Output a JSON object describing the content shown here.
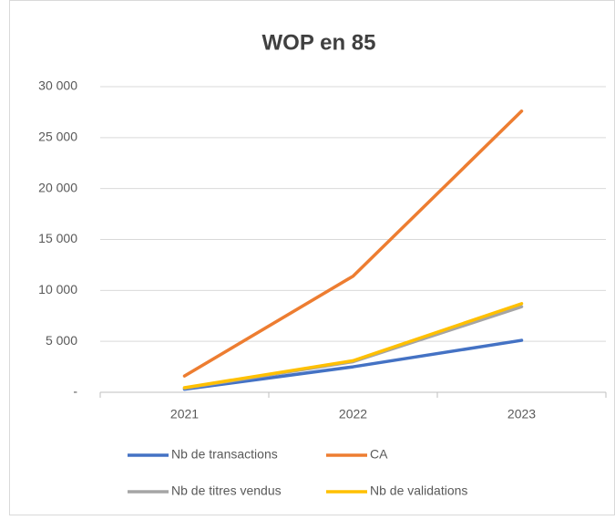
{
  "chart_data": {
    "type": "line",
    "title": "WOP en 85",
    "categories": [
      "2021",
      "2022",
      "2023"
    ],
    "series": [
      {
        "name": "Nb de transactions",
        "color": "#4472c4",
        "values": [
          300,
          2500,
          5100
        ]
      },
      {
        "name": "CA",
        "color": "#ed7d31",
        "values": [
          1600,
          11400,
          27600
        ]
      },
      {
        "name": "Nb de titres vendus",
        "color": "#a5a5a5",
        "values": [
          400,
          3000,
          8400
        ]
      },
      {
        "name": "Nb de validations",
        "color": "#ffc000",
        "values": [
          450,
          3100,
          8700
        ]
      }
    ],
    "ylim": [
      0,
      30000
    ],
    "yticks": [
      {
        "value": 0,
        "label": "-"
      },
      {
        "value": 5000,
        "label": "5 000"
      },
      {
        "value": 10000,
        "label": "10 000"
      },
      {
        "value": 15000,
        "label": "15 000"
      },
      {
        "value": 20000,
        "label": "20 000"
      },
      {
        "value": 25000,
        "label": "25 000"
      },
      {
        "value": 30000,
        "label": "30 000"
      }
    ],
    "grid": true,
    "legend": "bottom"
  }
}
